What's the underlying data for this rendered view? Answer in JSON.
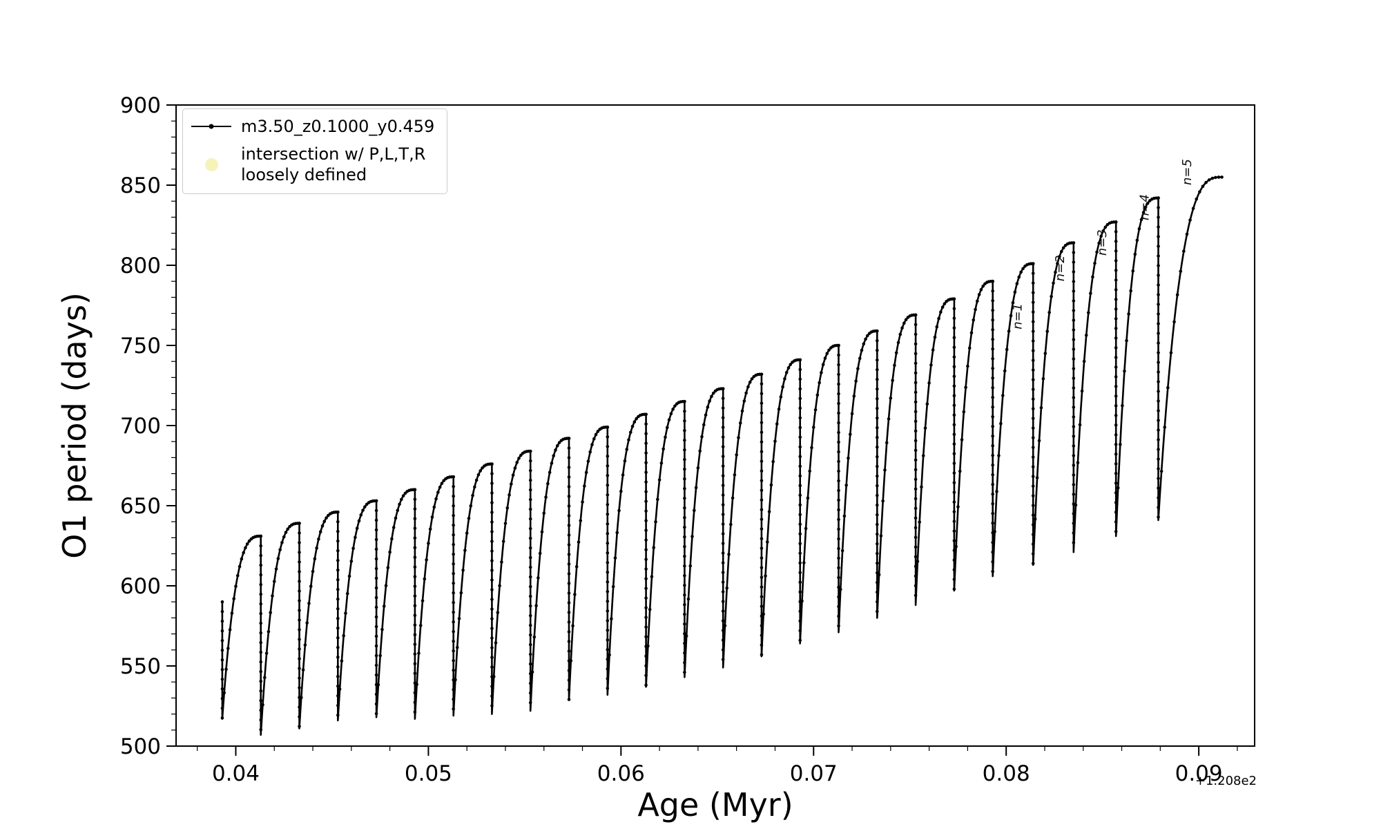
{
  "chart_data": {
    "type": "line",
    "title": "",
    "xlabel": "Age (Myr)",
    "ylabel": "O1 period (days)",
    "x_offset_text": "+1.208e2",
    "xlim": [
      0.0369,
      0.0929
    ],
    "ylim": [
      500,
      900
    ],
    "grid": false,
    "legend_position": "upper-left",
    "xticks": [
      {
        "value": 0.04,
        "label": "0.04"
      },
      {
        "value": 0.05,
        "label": "0.05"
      },
      {
        "value": 0.06,
        "label": "0.06"
      },
      {
        "value": 0.07,
        "label": "0.07"
      },
      {
        "value": 0.08,
        "label": "0.08"
      },
      {
        "value": 0.09,
        "label": "0.09"
      }
    ],
    "yticks": [
      {
        "value": 500,
        "label": "500"
      },
      {
        "value": 550,
        "label": "550"
      },
      {
        "value": 600,
        "label": "600"
      },
      {
        "value": 650,
        "label": "650"
      },
      {
        "value": 700,
        "label": "700"
      },
      {
        "value": 750,
        "label": "750"
      },
      {
        "value": 800,
        "label": "800"
      },
      {
        "value": 850,
        "label": "850"
      },
      {
        "value": 900,
        "label": "900"
      }
    ],
    "x_minor_step": 0.002,
    "y_minor_step": 10,
    "legend": [
      {
        "label": "m3.50_z0.1000_y0.459",
        "marker": "line-with-dot",
        "color": "#000000"
      },
      {
        "label_line1": "intersection w/ P,L,T,R",
        "label_line2": "loosely defined",
        "marker": "circle",
        "color": "#f3efa3"
      }
    ],
    "annotations": [
      {
        "text": "n=1",
        "x": 0.0808,
        "y": 760
      },
      {
        "text": "n=2",
        "x": 0.083,
        "y": 790
      },
      {
        "text": "n=3",
        "x": 0.0852,
        "y": 806
      },
      {
        "text": "n=4",
        "x": 0.0874,
        "y": 828
      },
      {
        "text": "n=5",
        "x": 0.0896,
        "y": 850
      }
    ],
    "series": [
      {
        "name": "m3.50_z0.1000_y0.459",
        "color": "#000000",
        "initial_top": 590,
        "x_end": 0.0912,
        "cycles": [
          {
            "x": 0.0393,
            "min": 517,
            "peak": 631
          },
          {
            "x": 0.0413,
            "min": 507,
            "peak": 639
          },
          {
            "x": 0.0433,
            "min": 511,
            "peak": 646
          },
          {
            "x": 0.0453,
            "min": 516,
            "peak": 653
          },
          {
            "x": 0.0473,
            "min": 518,
            "peak": 660
          },
          {
            "x": 0.0493,
            "min": 517,
            "peak": 668
          },
          {
            "x": 0.0513,
            "min": 519,
            "peak": 676
          },
          {
            "x": 0.0533,
            "min": 520,
            "peak": 684
          },
          {
            "x": 0.0553,
            "min": 522,
            "peak": 692
          },
          {
            "x": 0.0573,
            "min": 529,
            "peak": 699
          },
          {
            "x": 0.0593,
            "min": 532,
            "peak": 707
          },
          {
            "x": 0.0613,
            "min": 537,
            "peak": 715
          },
          {
            "x": 0.0633,
            "min": 543,
            "peak": 723
          },
          {
            "x": 0.0653,
            "min": 549,
            "peak": 732
          },
          {
            "x": 0.0673,
            "min": 556,
            "peak": 741
          },
          {
            "x": 0.0693,
            "min": 564,
            "peak": 750
          },
          {
            "x": 0.0713,
            "min": 571,
            "peak": 759
          },
          {
            "x": 0.0733,
            "min": 580,
            "peak": 769
          },
          {
            "x": 0.0753,
            "min": 588,
            "peak": 779
          },
          {
            "x": 0.0773,
            "min": 597,
            "peak": 790
          },
          {
            "x": 0.0793,
            "min": 606,
            "peak": 801
          },
          {
            "x": 0.0814,
            "min": 613,
            "peak": 814
          },
          {
            "x": 0.0835,
            "min": 621,
            "peak": 827
          },
          {
            "x": 0.0857,
            "min": 631,
            "peak": 842
          },
          {
            "x": 0.0879,
            "min": 641,
            "peak": 855
          }
        ]
      }
    ]
  }
}
